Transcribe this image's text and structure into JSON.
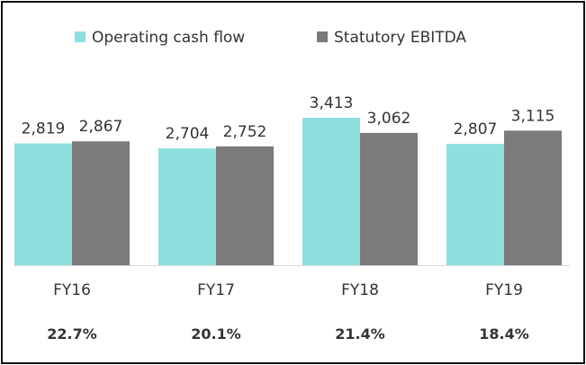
{
  "chart_data": {
    "type": "bar",
    "categories": [
      "FY16",
      "FY17",
      "FY18",
      "FY19"
    ],
    "series": [
      {
        "name": "Operating cash flow",
        "values": [
          2819,
          2704,
          3413,
          2807
        ],
        "labels": [
          "2,819",
          "2,704",
          "3,413",
          "2,807"
        ],
        "color": "#8ee0df"
      },
      {
        "name": "Statutory EBITDA",
        "values": [
          2867,
          2752,
          3062,
          3115
        ],
        "labels": [
          "2,867",
          "2,752",
          "3,062",
          "3,115"
        ],
        "color": "#7b7b7b"
      }
    ],
    "category_footnotes": [
      "22.7%",
      "20.1%",
      "21.4%",
      "18.4%"
    ],
    "ylim": [
      0,
      3413
    ],
    "grid": false,
    "legend": "top-left",
    "title": "",
    "xlabel": "",
    "ylabel": ""
  }
}
